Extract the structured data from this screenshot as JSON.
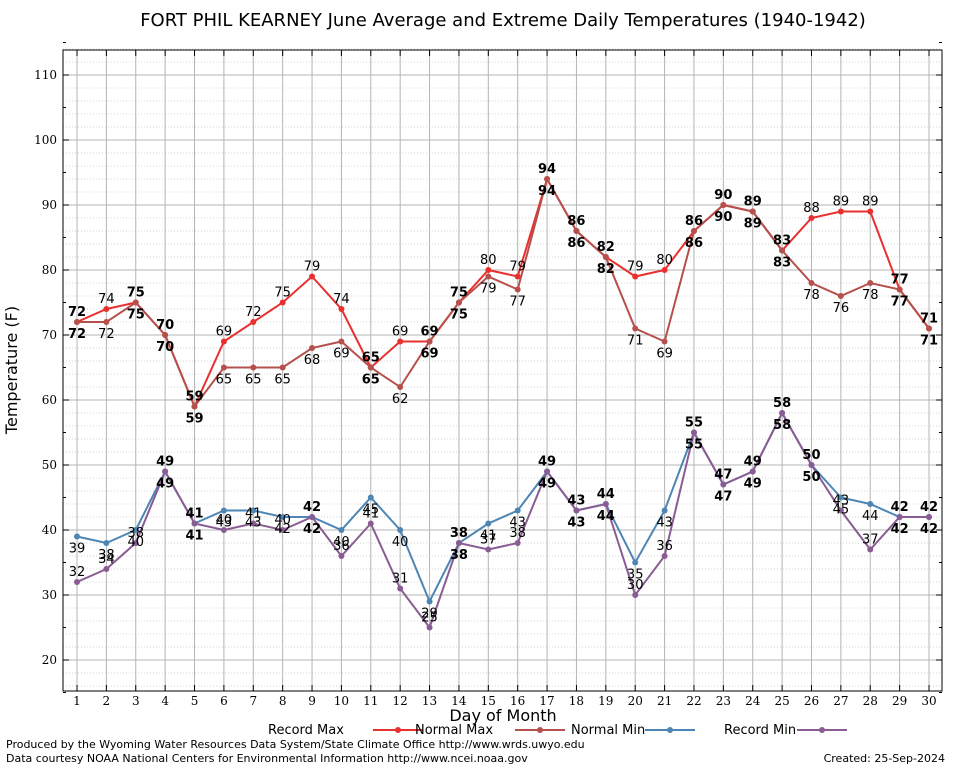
{
  "chart_data": {
    "type": "line",
    "title": "FORT PHIL KEARNEY June Average and Extreme Daily Temperatures (1940-1942)",
    "xlabel": "Day of Month",
    "ylabel": "Temperature (F)",
    "xlim": [
      1,
      30
    ],
    "ylim": [
      15,
      115
    ],
    "x": [
      1,
      2,
      3,
      4,
      5,
      6,
      7,
      8,
      9,
      10,
      11,
      12,
      13,
      14,
      15,
      16,
      17,
      18,
      19,
      20,
      21,
      22,
      23,
      24,
      25,
      26,
      27,
      28,
      29,
      30
    ],
    "yticks": [
      20,
      30,
      40,
      50,
      60,
      70,
      80,
      90,
      100,
      110
    ],
    "grid": true,
    "legend_position": "bottom",
    "series": [
      {
        "name": "Record Max",
        "color": "#e8302f",
        "values": [
          72,
          74,
          75,
          70,
          59,
          69,
          72,
          75,
          79,
          74,
          65,
          69,
          69,
          75,
          80,
          79,
          94,
          86,
          82,
          79,
          80,
          86,
          90,
          89,
          83,
          88,
          89,
          89,
          77,
          71
        ]
      },
      {
        "name": "Normal Max",
        "color": "#b6504c",
        "values": [
          72,
          72,
          75,
          70,
          59,
          65,
          65,
          65,
          68,
          69,
          65,
          62,
          69,
          75,
          79,
          77,
          94,
          86,
          82,
          71,
          69,
          86,
          90,
          89,
          83,
          78,
          76,
          78,
          77,
          71
        ]
      },
      {
        "name": "Normal Min",
        "color": "#4d86b4",
        "values": [
          39,
          38,
          40,
          49,
          41,
          43,
          43,
          42,
          42,
          40,
          45,
          40,
          29,
          38,
          41,
          43,
          49,
          43,
          44,
          35,
          43,
          55,
          47,
          49,
          58,
          50,
          45,
          44,
          42,
          42
        ]
      },
      {
        "name": "Record Min",
        "color": "#8a5c94",
        "values": [
          32,
          34,
          38,
          49,
          41,
          40,
          41,
          40,
          42,
          36,
          41,
          31,
          25,
          38,
          37,
          38,
          49,
          43,
          44,
          30,
          36,
          55,
          47,
          49,
          58,
          50,
          43,
          37,
          42,
          42
        ]
      }
    ]
  },
  "footer": {
    "produced_by": "Produced by the Wyoming Water Resources Data System/State Climate Office http://www.wrds.uwyo.edu",
    "courtesy": "Data courtesy NOAA National Centers for Environmental Information http://www.ncei.noaa.gov",
    "created": "Created:  25-Sep-2024"
  }
}
